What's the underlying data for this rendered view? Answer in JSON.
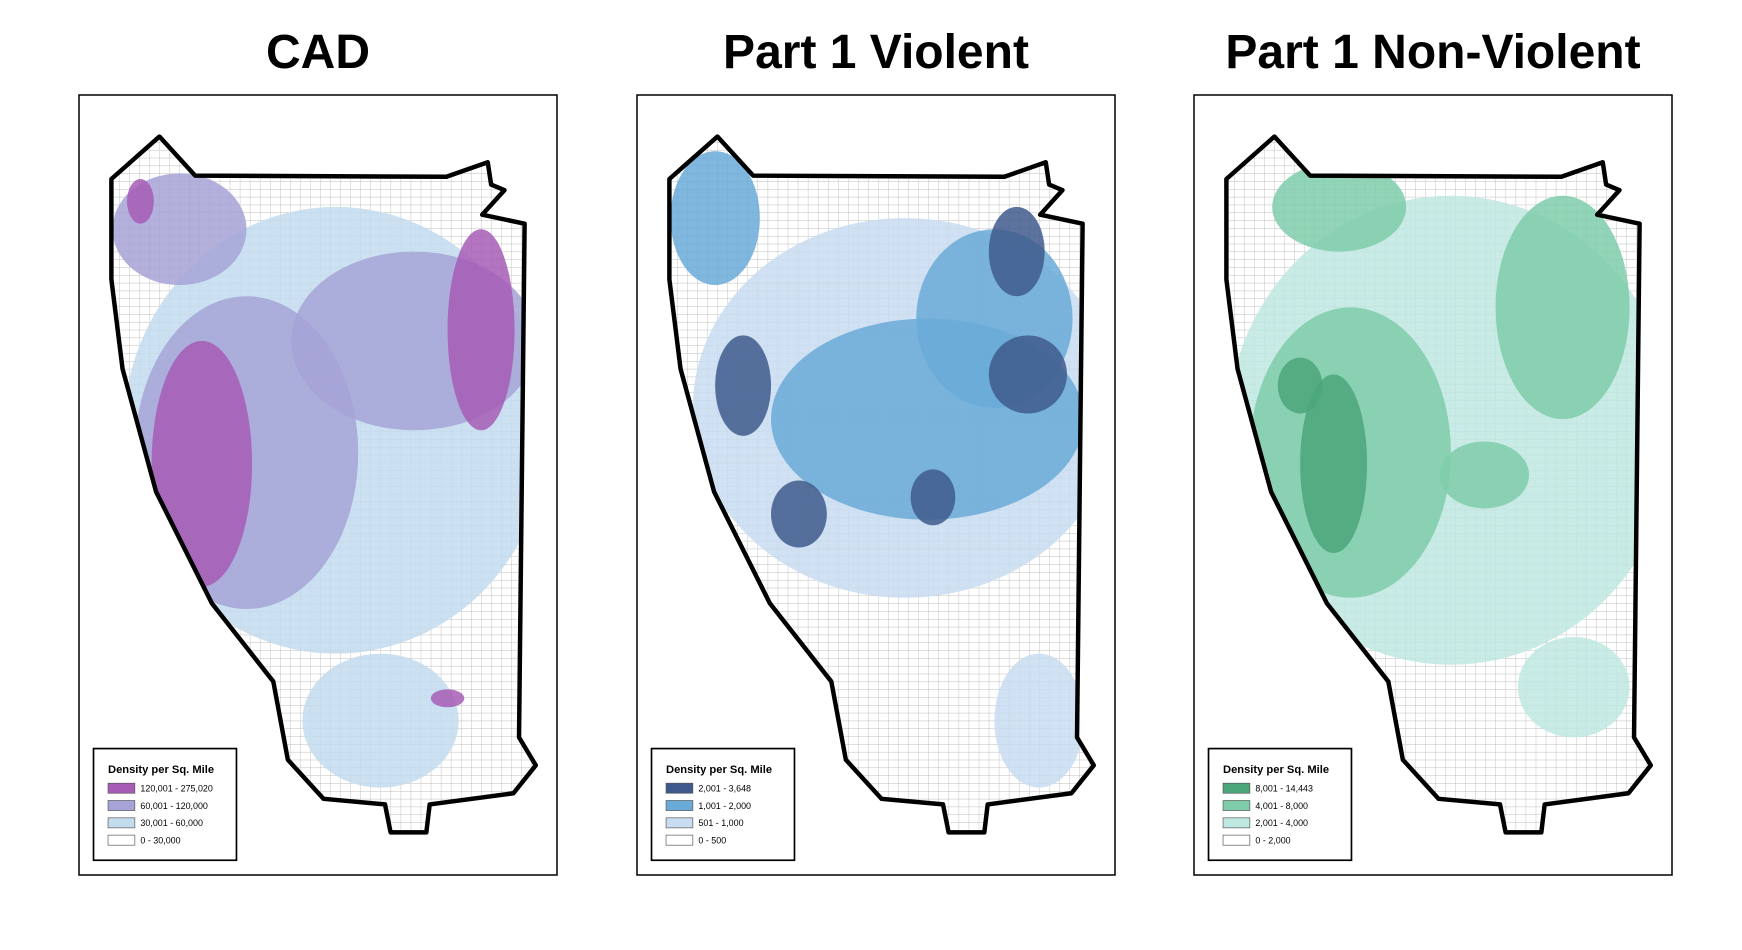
{
  "maps": [
    {
      "title": "CAD",
      "legend": {
        "title": "Density per Sq. Mile",
        "items": [
          {
            "label": "120,001 - 275,020",
            "color": "#a65cb5"
          },
          {
            "label": "60,001 - 120,000",
            "color": "#a6a3d6"
          },
          {
            "label": "30,001 - 60,000",
            "color": "#c2dcee"
          },
          {
            "label": "0 - 30,000",
            "color": "#ffffff"
          }
        ]
      }
    },
    {
      "title": "Part 1 Violent",
      "legend": {
        "title": "Density per Sq. Mile",
        "items": [
          {
            "label": "2,001 - 3,648",
            "color": "#3e5a8c"
          },
          {
            "label": "1,001 - 2,000",
            "color": "#6aaad8"
          },
          {
            "label": "501 - 1,000",
            "color": "#c7dcf0"
          },
          {
            "label": "0 - 500",
            "color": "#ffffff"
          }
        ]
      }
    },
    {
      "title": "Part 1 Non-Violent",
      "legend": {
        "title": "Density per Sq. Mile",
        "items": [
          {
            "label": "8,001 - 14,443",
            "color": "#4ba67a"
          },
          {
            "label": "4,001 - 8,000",
            "color": "#7fccaa"
          },
          {
            "label": "2,001 - 4,000",
            "color": "#bfe8e2"
          },
          {
            "label": "0 - 2,000",
            "color": "#ffffff"
          }
        ]
      }
    }
  ]
}
